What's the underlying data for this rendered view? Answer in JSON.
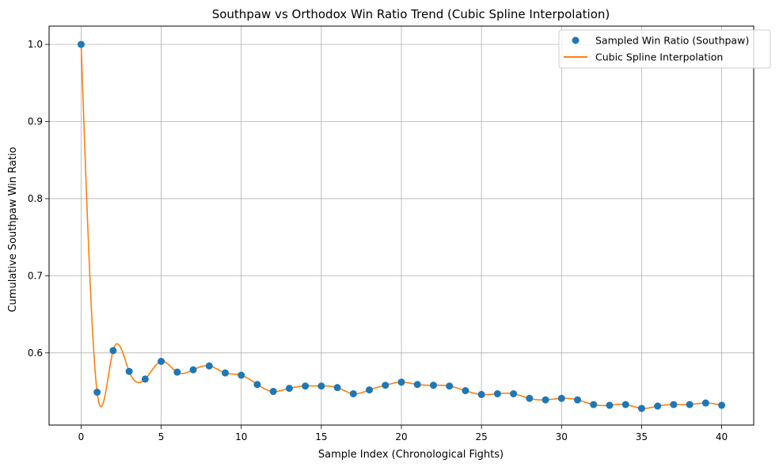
{
  "chart_data": {
    "type": "line",
    "title": "Southpaw vs Orthodox Win Ratio Trend (Cubic Spline Interpolation)",
    "xlabel": "Sample Index (Chronological Fights)",
    "ylabel": "Cumulative Southpaw Win Ratio",
    "xlim": [
      -2,
      42
    ],
    "ylim": [
      0.5064,
      1.0237
    ],
    "x_ticks": [
      0,
      5,
      10,
      15,
      20,
      25,
      30,
      35,
      40
    ],
    "y_ticks": [
      0.6,
      0.7,
      0.8,
      0.9,
      1.0
    ],
    "x_tick_labels": [
      "0",
      "5",
      "10",
      "15",
      "20",
      "25",
      "30",
      "35",
      "40"
    ],
    "y_tick_labels": [
      "0.6",
      "0.7",
      "0.8",
      "0.9",
      "1.0"
    ],
    "grid": true,
    "legend_position": "upper right",
    "series": [
      {
        "name": "Sampled Win Ratio (Southpaw)",
        "kind": "scatter",
        "color": "#1f77b4",
        "x": [
          0,
          1,
          2,
          3,
          4,
          5,
          6,
          7,
          8,
          9,
          10,
          11,
          12,
          13,
          14,
          15,
          16,
          17,
          18,
          19,
          20,
          21,
          22,
          23,
          24,
          25,
          26,
          27,
          28,
          29,
          30,
          31,
          32,
          33,
          34,
          35,
          36,
          37,
          38,
          39,
          40
        ],
        "values": [
          1.0,
          0.549,
          0.603,
          0.576,
          0.566,
          0.589,
          0.575,
          0.578,
          0.583,
          0.574,
          0.571,
          0.559,
          0.55,
          0.554,
          0.557,
          0.557,
          0.555,
          0.547,
          0.552,
          0.558,
          0.562,
          0.559,
          0.558,
          0.557,
          0.551,
          0.546,
          0.547,
          0.547,
          0.541,
          0.539,
          0.541,
          0.539,
          0.533,
          0.532,
          0.533,
          0.528,
          0.531,
          0.533,
          0.533,
          0.535,
          0.532
        ]
      },
      {
        "name": "Cubic Spline Interpolation",
        "kind": "line",
        "color": "#ff7f0e",
        "interpolation": "cubic spline through sampled points"
      }
    ]
  }
}
